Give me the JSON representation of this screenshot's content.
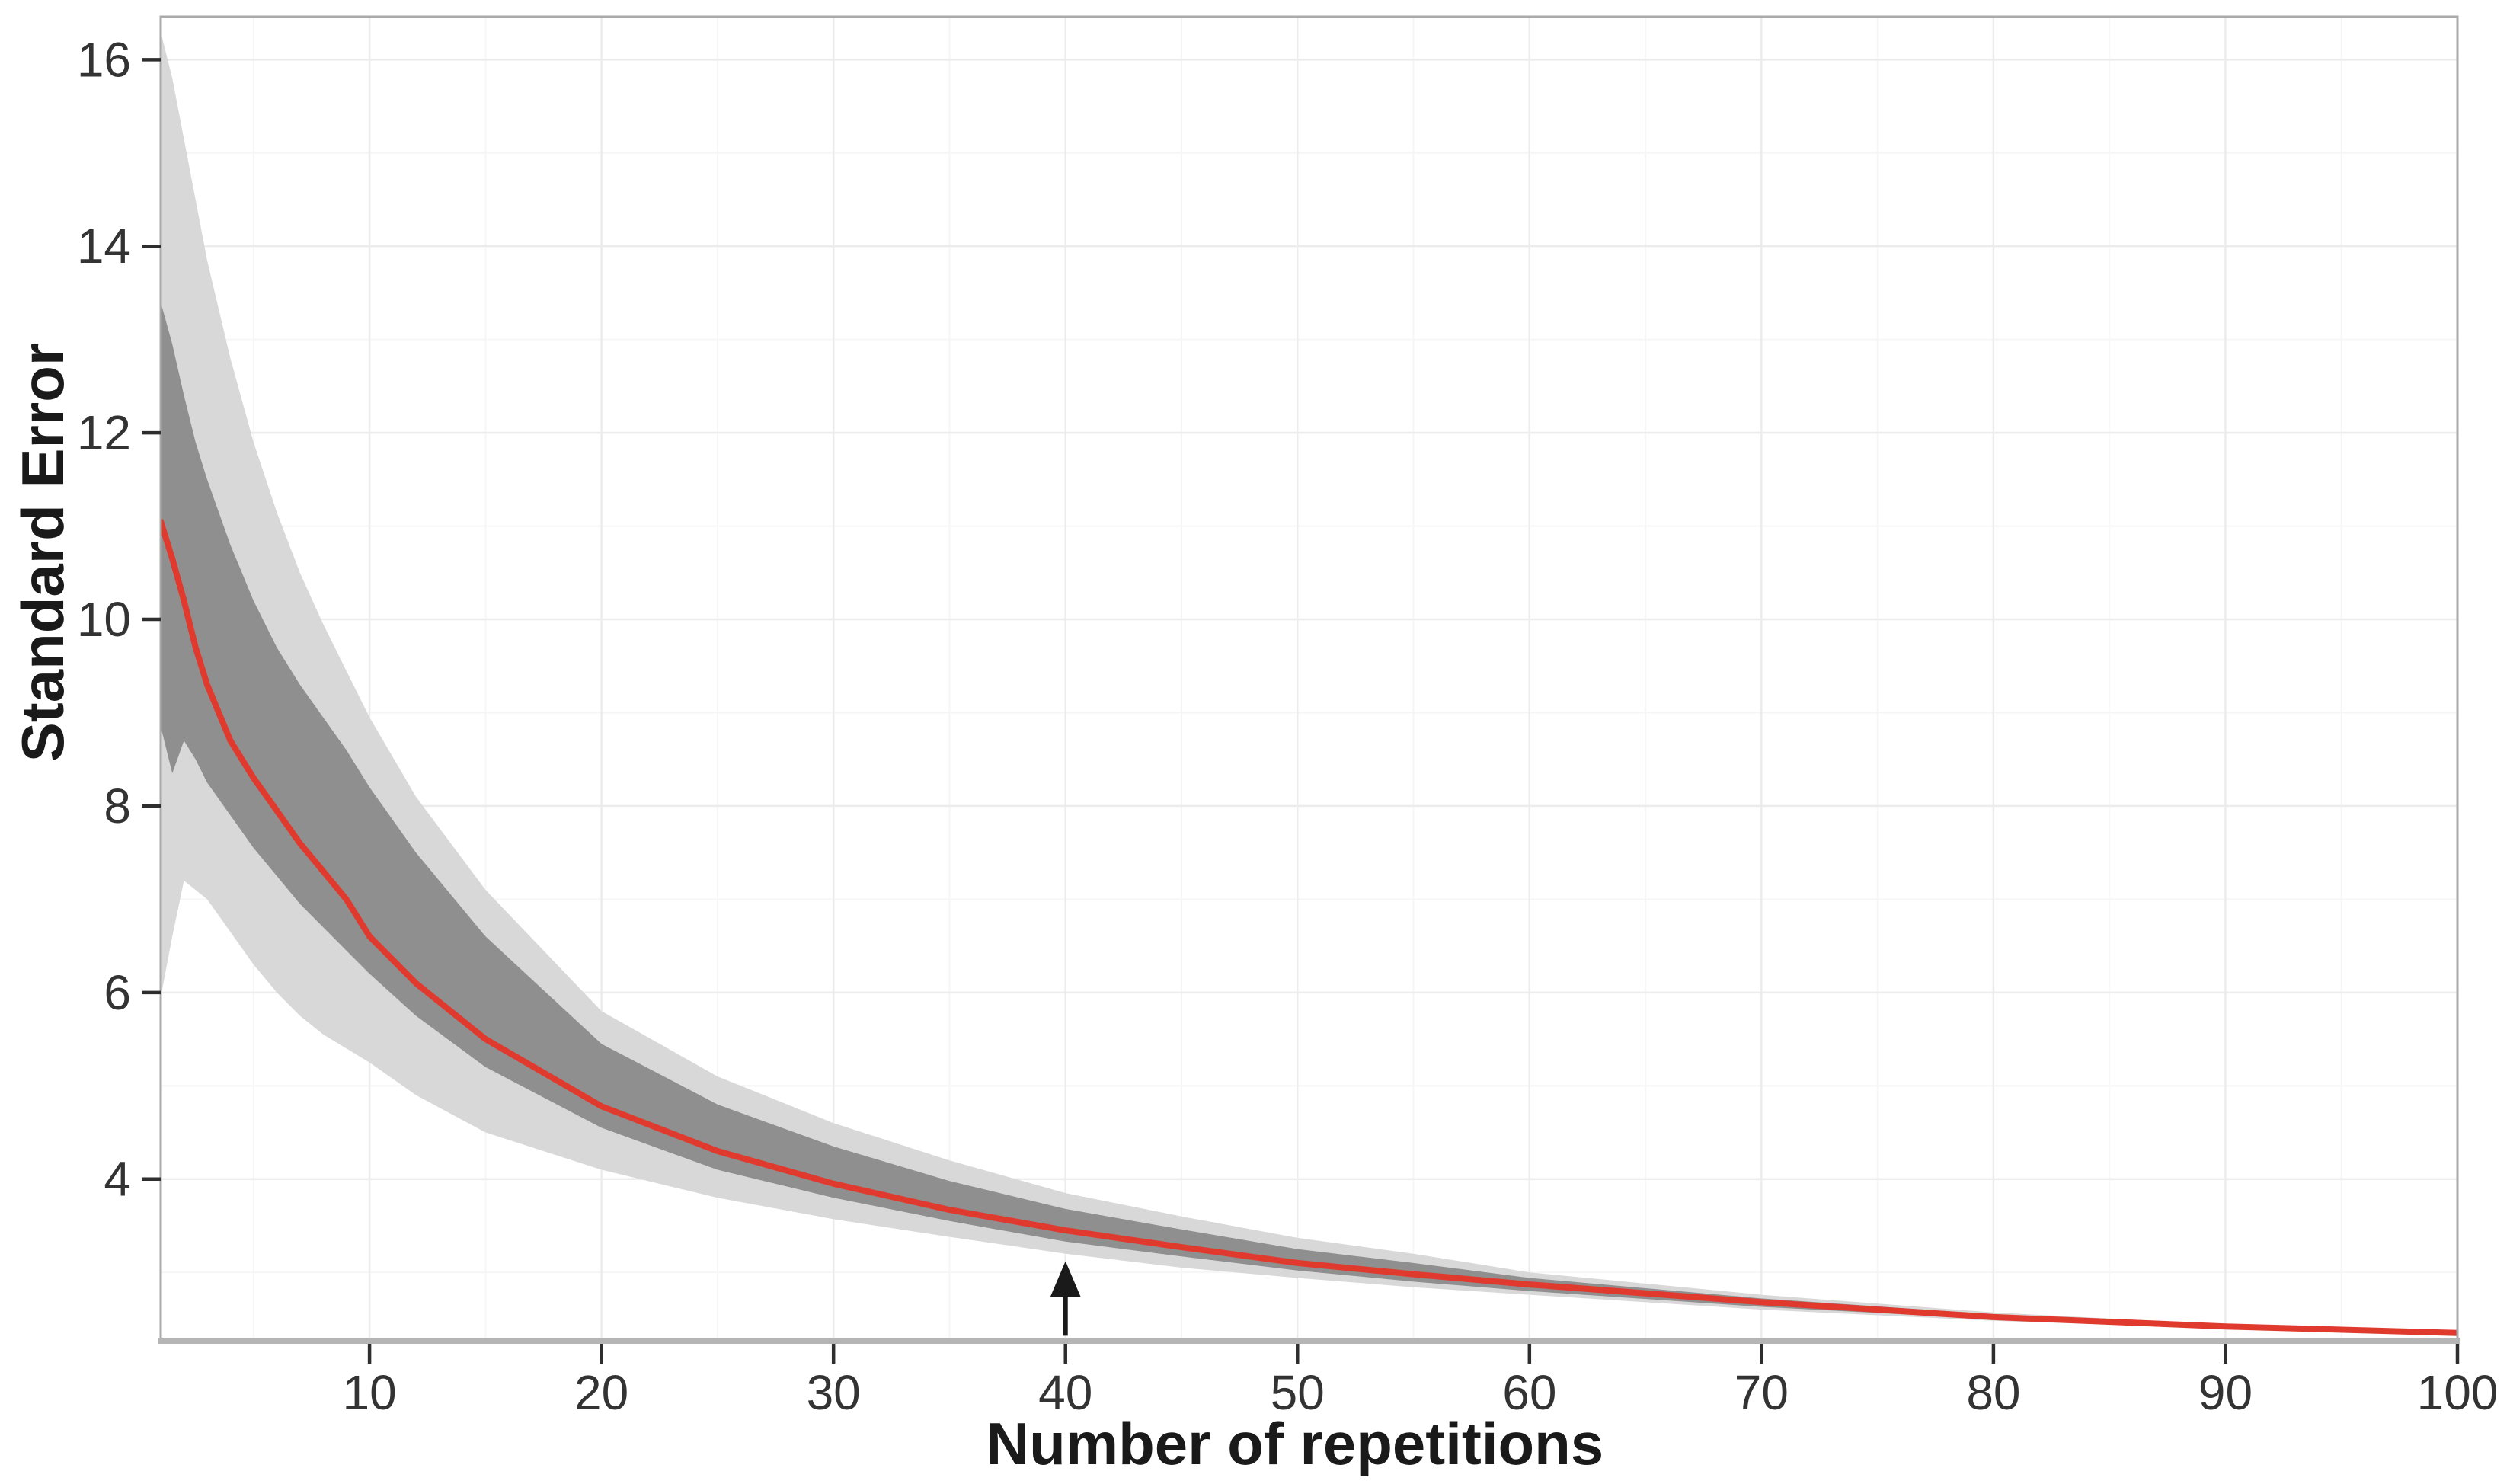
{
  "chart_data": {
    "type": "line",
    "title": "",
    "xlabel": "Number of repetitions",
    "ylabel": "Standard Error",
    "xlim": [
      1,
      100
    ],
    "ylim": [
      2.25,
      16.46
    ],
    "x_ticks": [
      10,
      20,
      30,
      40,
      50,
      60,
      70,
      80,
      90,
      100
    ],
    "x_minor_gridlines": [
      5,
      15,
      25,
      35,
      45,
      55,
      65,
      75,
      85,
      95
    ],
    "y_ticks": [
      4,
      6,
      8,
      10,
      12,
      14,
      16
    ],
    "y_minor_gridlines": [
      3,
      5,
      7,
      9,
      11,
      13,
      15
    ],
    "grid": {
      "major": true,
      "minor": true
    },
    "legend_position": "none",
    "x": [
      1,
      1.5,
      2,
      2.5,
      3,
      4,
      5,
      6,
      7,
      8,
      9,
      10,
      12,
      15,
      20,
      25,
      30,
      35,
      40,
      45,
      50,
      55,
      60,
      70,
      80,
      90,
      100
    ],
    "series": [
      {
        "name": "median-standard-error",
        "type": "line",
        "color": "#e03a2e",
        "values": [
          11.05,
          10.65,
          10.2,
          9.7,
          9.3,
          8.7,
          8.3,
          7.95,
          7.6,
          7.3,
          7.0,
          6.6,
          6.1,
          5.5,
          4.78,
          4.3,
          3.95,
          3.67,
          3.45,
          3.27,
          3.1,
          2.98,
          2.87,
          2.68,
          2.52,
          2.42,
          2.35
        ]
      }
    ],
    "bands": [
      {
        "name": "outer-band-95pct",
        "color": "#d8d8d8",
        "upper": [
          16.3,
          15.8,
          15.15,
          14.5,
          13.85,
          12.8,
          11.9,
          11.15,
          10.5,
          9.95,
          9.45,
          8.95,
          8.1,
          7.1,
          5.8,
          5.1,
          4.6,
          4.2,
          3.85,
          3.6,
          3.37,
          3.2,
          3.0,
          2.76,
          2.57,
          2.44,
          2.37
        ],
        "lower": [
          5.95,
          6.6,
          7.2,
          7.1,
          7.0,
          6.65,
          6.3,
          6.0,
          5.75,
          5.55,
          5.4,
          5.25,
          4.9,
          4.5,
          4.1,
          3.8,
          3.57,
          3.38,
          3.2,
          3.05,
          2.94,
          2.84,
          2.76,
          2.6,
          2.48,
          2.4,
          2.33
        ]
      },
      {
        "name": "inner-band-50pct",
        "color": "#8f8f8f",
        "upper": [
          13.4,
          12.95,
          12.4,
          11.9,
          11.5,
          10.8,
          10.2,
          9.7,
          9.3,
          8.95,
          8.6,
          8.2,
          7.5,
          6.6,
          5.45,
          4.8,
          4.35,
          3.98,
          3.68,
          3.46,
          3.25,
          3.1,
          2.94,
          2.72,
          2.55,
          2.43,
          2.36
        ],
        "lower": [
          8.85,
          8.35,
          8.7,
          8.5,
          8.25,
          7.9,
          7.55,
          7.25,
          6.95,
          6.7,
          6.45,
          6.2,
          5.75,
          5.2,
          4.55,
          4.1,
          3.8,
          3.55,
          3.33,
          3.17,
          3.02,
          2.9,
          2.8,
          2.63,
          2.5,
          2.41,
          2.34
        ]
      }
    ],
    "annotations": [
      {
        "type": "arrow",
        "x": 40,
        "v_from": 2.32,
        "v_to": 3.12,
        "color": "#1a1a1a"
      }
    ]
  },
  "style": {
    "background": "#ffffff",
    "panel_border": "#aaaaaa",
    "axis_line": "#b5b5b5",
    "grid_major": "#ececec",
    "grid_minor": "#f6f6f6",
    "tick_color": "#2e2e2e",
    "tick_label_color": "#333333",
    "title_color": "#1a1a1a",
    "red_line": "#e03a2e",
    "inner_band": "#8f8f8f",
    "outer_band": "#d8d8d8"
  }
}
